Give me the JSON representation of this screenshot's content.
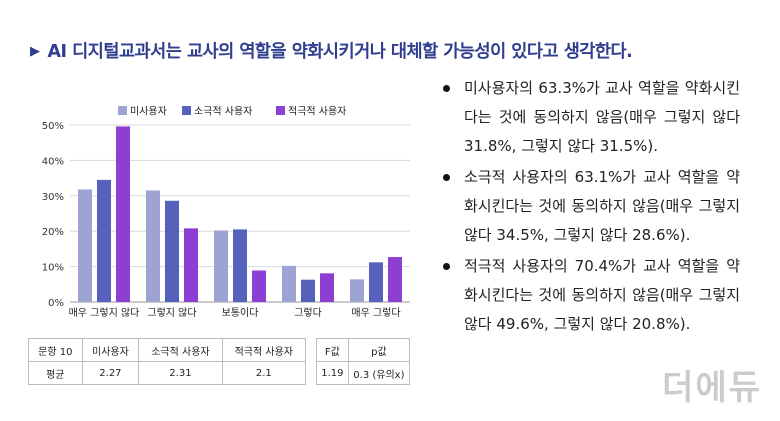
{
  "title": "AI 디지털교과서는 교사의 역할을 약화시키거나 대체할 가능성이 있다고 생각한다.",
  "title_marker": "▶",
  "colors": {
    "title": "#2f3e8f",
    "nonuser": "#9da4d4",
    "passive": "#5661bb",
    "active": "#8d3fd4"
  },
  "chart_data": {
    "type": "bar",
    "categories": [
      "매우 그렇지 않다",
      "그렇지 않다",
      "보통이다",
      "그렇다",
      "매우 그렇다"
    ],
    "series": [
      {
        "name": "미사용자",
        "values": [
          31.8,
          31.5,
          20.2,
          10.2,
          6.4
        ]
      },
      {
        "name": "소극적 사용자",
        "values": [
          34.5,
          28.6,
          20.5,
          6.3,
          11.2
        ]
      },
      {
        "name": "적극적 사용자",
        "values": [
          49.6,
          20.8,
          8.9,
          8.1,
          12.7
        ]
      }
    ],
    "ylim": [
      0,
      50
    ],
    "yticks": [
      "0%",
      "10%",
      "20%",
      "30%",
      "40%",
      "50%"
    ],
    "legend_position": "top",
    "grid": true
  },
  "bullets": [
    "미사용자의 63.3%가 교사 역할을 약화시킨다는 것에 동의하지 않음(매우 그렇지 않다 31.8%, 그렇지 않다 31.5%).",
    "소극적 사용자의 63.1%가 교사 역할을 약화시킨다는 것에 동의하지 않음(매우 그렇지 않다 34.5%, 그렇지 않다 28.6%).",
    "적극적 사용자의 70.4%가 교사 역할을 약화시킨다는 것에 동의하지 않음(매우 그렇지 않다 49.6%, 그렇지 않다 20.8%)."
  ],
  "table1": {
    "headers": [
      "문항 10",
      "미사용자",
      "소극적 사용자",
      "적극적 사용자"
    ],
    "row": [
      "평균",
      "2.27",
      "2.31",
      "2.1"
    ]
  },
  "table2": {
    "headers": [
      "F값",
      "p값"
    ],
    "row": [
      "1.19",
      "0.3 (유의x)"
    ]
  },
  "watermark": "더에듀"
}
